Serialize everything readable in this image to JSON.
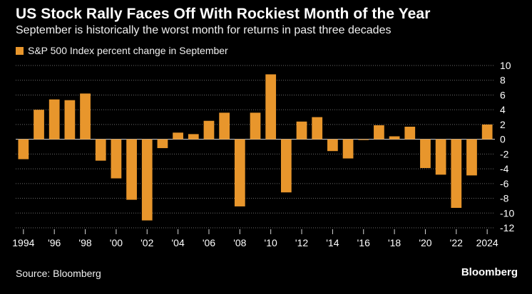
{
  "colors": {
    "background": "#000000",
    "bar": "#e8962c",
    "gridline": "#6b6b6b",
    "zero_line": "#d8d8d8",
    "text": "#ffffff"
  },
  "chart_data": {
    "type": "bar",
    "title": "US Stock Rally Faces Off With Rockiest Month of the Year",
    "subtitle": "September is historically the worst month for returns in past three decades",
    "legend": "S&P 500 Index percent change in September",
    "legend_placement": "top-left",
    "grid": true,
    "ylim": [
      -12,
      10
    ],
    "y_ticks": [
      "10",
      "8",
      "6",
      "4",
      "2",
      "0",
      "-2",
      "-4",
      "-6",
      "-8",
      "-10",
      "-12"
    ],
    "y_tick_values": [
      10,
      8,
      6,
      4,
      2,
      0,
      -2,
      -4,
      -6,
      -8,
      -10,
      -12
    ],
    "x_tick_labels": [
      {
        "year": 1994,
        "label": "1994"
      },
      {
        "year": 1996,
        "label": "'96"
      },
      {
        "year": 1998,
        "label": "'98"
      },
      {
        "year": 2000,
        "label": "'00"
      },
      {
        "year": 2002,
        "label": "'02"
      },
      {
        "year": 2004,
        "label": "'04"
      },
      {
        "year": 2006,
        "label": "'06"
      },
      {
        "year": 2008,
        "label": "'08"
      },
      {
        "year": 2010,
        "label": "'10"
      },
      {
        "year": 2012,
        "label": "'12"
      },
      {
        "year": 2014,
        "label": "'14"
      },
      {
        "year": 2016,
        "label": "'16"
      },
      {
        "year": 2018,
        "label": "'18"
      },
      {
        "year": 2020,
        "label": "'20"
      },
      {
        "year": 2022,
        "label": "'22"
      },
      {
        "year": 2024,
        "label": "2024"
      }
    ],
    "categories": [
      1994,
      1995,
      1996,
      1997,
      1998,
      1999,
      2000,
      2001,
      2002,
      2003,
      2004,
      2005,
      2006,
      2007,
      2008,
      2009,
      2010,
      2011,
      2012,
      2013,
      2014,
      2015,
      2016,
      2017,
      2018,
      2019,
      2020,
      2021,
      2022,
      2023,
      2024
    ],
    "values": [
      -2.7,
      4.0,
      5.4,
      5.3,
      6.2,
      -2.9,
      -5.3,
      -8.2,
      -11.0,
      -1.2,
      0.9,
      0.7,
      2.5,
      3.6,
      -9.1,
      3.6,
      8.8,
      -7.2,
      2.4,
      3.0,
      -1.6,
      -2.6,
      -0.1,
      1.9,
      0.4,
      1.7,
      -3.9,
      -4.8,
      -9.3,
      -4.9,
      2.0
    ]
  },
  "footer": {
    "source": "Source: Bloomberg",
    "brand": "Bloomberg"
  }
}
